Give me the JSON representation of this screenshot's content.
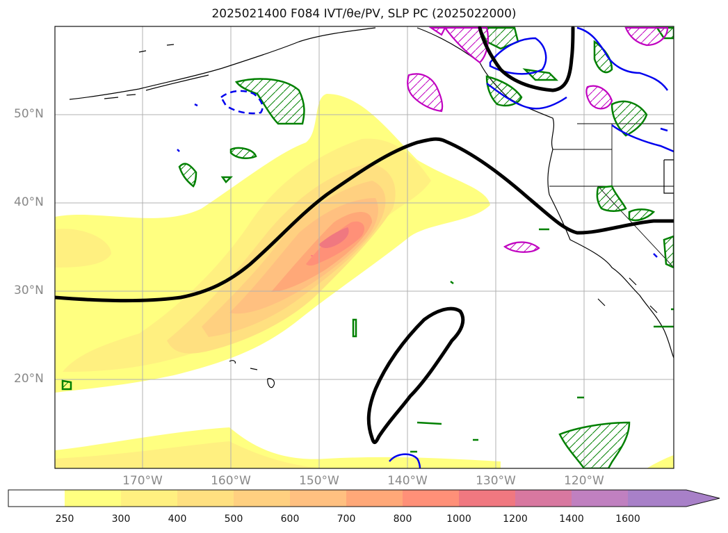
{
  "title": "2025021400 F084 IVT/θe/PV, SLP PC (2025022000)",
  "map": {
    "lat_labels": [
      "50°N",
      "40°N",
      "30°N",
      "20°N"
    ],
    "lon_labels": [
      "170°W",
      "160°W",
      "150°W",
      "140°W",
      "130°W",
      "120°W"
    ],
    "colors": {
      "ivt": [
        "#ffffff",
        "#ffff80",
        "#fff080",
        "#ffe080",
        "#ffd080",
        "#ffc080",
        "#ffa878",
        "#ff9078",
        "#f07880",
        "#d878a0",
        "#c080c0",
        "#a880c8"
      ],
      "slp_contour": "#000000",
      "theta_e": "#0000ee",
      "pv_green": "#008000",
      "pv_magenta": "#c000c0",
      "coast": "#000000",
      "grid": "#b0b0b0"
    }
  },
  "colorbar": {
    "labels": [
      "250",
      "300",
      "400",
      "500",
      "600",
      "700",
      "800",
      "1000",
      "1200",
      "1400",
      "1600"
    ],
    "extend": "max"
  }
}
